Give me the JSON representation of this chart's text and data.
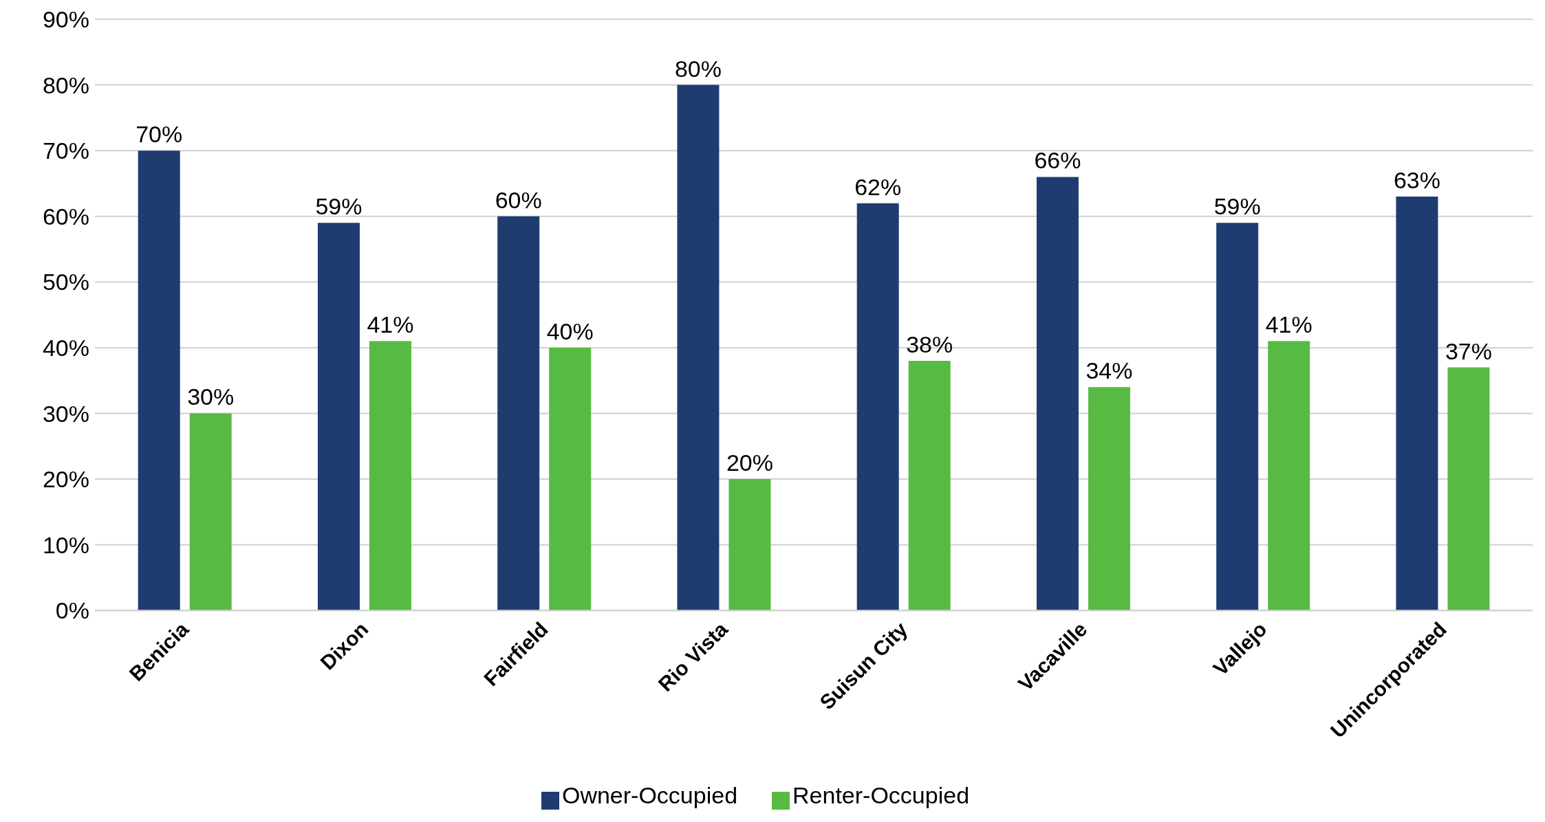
{
  "chart_data": {
    "type": "bar",
    "categories": [
      "Benicia",
      "Dixon",
      "Fairfield",
      "Rio Vista",
      "Suisun City",
      "Vacaville",
      "Vallejo",
      "Unincorporated"
    ],
    "series": [
      {
        "name": "Owner-Occupied",
        "color": "#1f3c70",
        "values": [
          70,
          59,
          60,
          80,
          62,
          66,
          59,
          63
        ],
        "value_labels": [
          "70%",
          "59%",
          "60%",
          "80%",
          "62%",
          "66%",
          "59%",
          "63%"
        ]
      },
      {
        "name": "Renter-Occupied",
        "color": "#57bb43",
        "values": [
          30,
          41,
          40,
          20,
          38,
          34,
          41,
          37
        ],
        "value_labels": [
          "30%",
          "41%",
          "40%",
          "20%",
          "38%",
          "34%",
          "41%",
          "37%"
        ]
      }
    ],
    "ylim": [
      0,
      90
    ],
    "yticks": [
      {
        "value": 0,
        "label": "0%"
      },
      {
        "value": 10,
        "label": "10%"
      },
      {
        "value": 20,
        "label": "20%"
      },
      {
        "value": 30,
        "label": "30%"
      },
      {
        "value": 40,
        "label": "40%"
      },
      {
        "value": 50,
        "label": "50%"
      },
      {
        "value": 60,
        "label": "60%"
      },
      {
        "value": 70,
        "label": "70%"
      },
      {
        "value": 80,
        "label": "80%"
      },
      {
        "value": 90,
        "label": "90%"
      }
    ],
    "grid": "y",
    "legend": "bottom"
  }
}
